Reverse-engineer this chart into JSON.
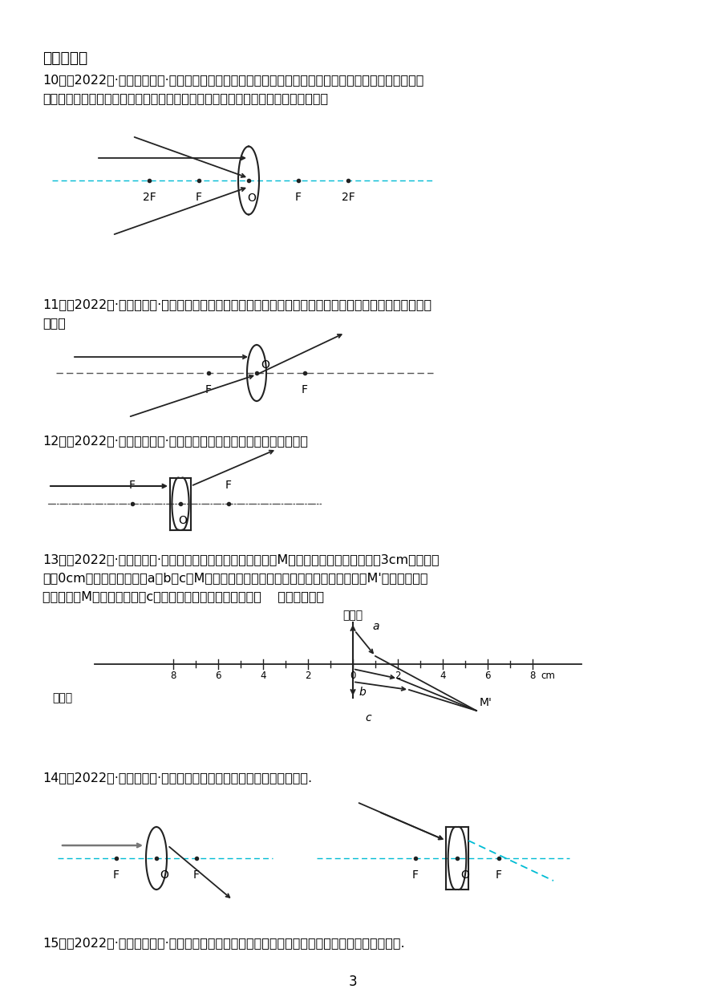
{
  "bg_color": "#ffffff",
  "text_color": "#000000",
  "page_number": "3",
  "section_title": "三、作图题",
  "q10_text1": "10．（2022秋·黑龙江牡丹江·八年级统考期末）如图所示，表示分别平行于主光轴的光线和一倍焦距处射",
  "q10_text2": "向透镜的光线，及射向光心的光线，请你在图中分别画出它们经过透镜后的光路图。",
  "q11_text1": "11．（2022秋·黑龙江大庆·八年级统考期末）根据凸透镜的性质，在图中完成光路图：画出折射光线或入射",
  "q11_text2": "光线。",
  "q12_text": "12．（2022秋·黑龙江哈尔滨·八年级统考期末）请在图中完成光路图。",
  "q13_text1": "13．（2022秋·黑龙江大庆·八年级统考期末）如图所示，光源M（图中没画出）放在焦距为3cm的凸透镜",
  "q13_text2": "前，0cm处为凸透镜光心。a、b、c是M发出的三条光线经凸透镜折射后的光线，相交于M'。请在图中画",
  "q13_text3": "出确定光源M的光路图并画出c经凸透镜折射前的入射光线。（    表示凸透镜）",
  "q14_text": "14．（2022秋·黑龙江鸡西·八年级期末）完成下图中所示的透镜光路图.",
  "q15_text": "15．（2022秋·黑龙江哈尔滨·八年级期末）如图，请作出凸透镜的入射光线和进入水中的折射光线.",
  "axis_color": "#00bcd4",
  "lens_color": "#222222",
  "arrow_color": "#222222",
  "line_color": "#222222",
  "gray_color": "#888888"
}
